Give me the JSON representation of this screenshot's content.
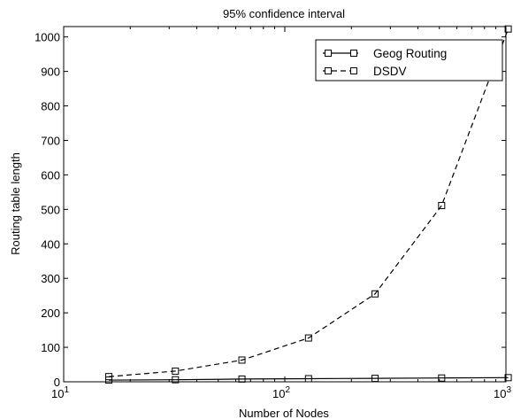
{
  "chart_data": {
    "type": "line",
    "title": "95% confidence interval",
    "xlabel": "Number of Nodes",
    "ylabel": "Routing table length",
    "x_scale": "log",
    "xlim": [
      10,
      1000
    ],
    "ylim": [
      0,
      1030
    ],
    "x_ticks": [
      {
        "value": 10,
        "base": "10",
        "exp": "1"
      },
      {
        "value": 100,
        "base": "10",
        "exp": "2"
      },
      {
        "value": 1000,
        "base": "10",
        "exp": "3"
      }
    ],
    "y_ticks": [
      0,
      100,
      200,
      300,
      400,
      500,
      600,
      700,
      800,
      900,
      1000
    ],
    "grid": false,
    "legend_position": "top-right",
    "x": [
      16,
      32,
      64,
      128,
      256,
      512,
      1024
    ],
    "series": [
      {
        "name": "Geog Routing",
        "values": [
          5,
          6,
          8,
          9,
          10,
          11,
          12
        ],
        "line_style": "solid",
        "marker": "square",
        "color": "#000000"
      },
      {
        "name": "DSDV",
        "values": [
          15,
          31,
          63,
          127,
          255,
          511,
          1023
        ],
        "line_style": "dashed",
        "marker": "square",
        "color": "#000000"
      }
    ]
  }
}
